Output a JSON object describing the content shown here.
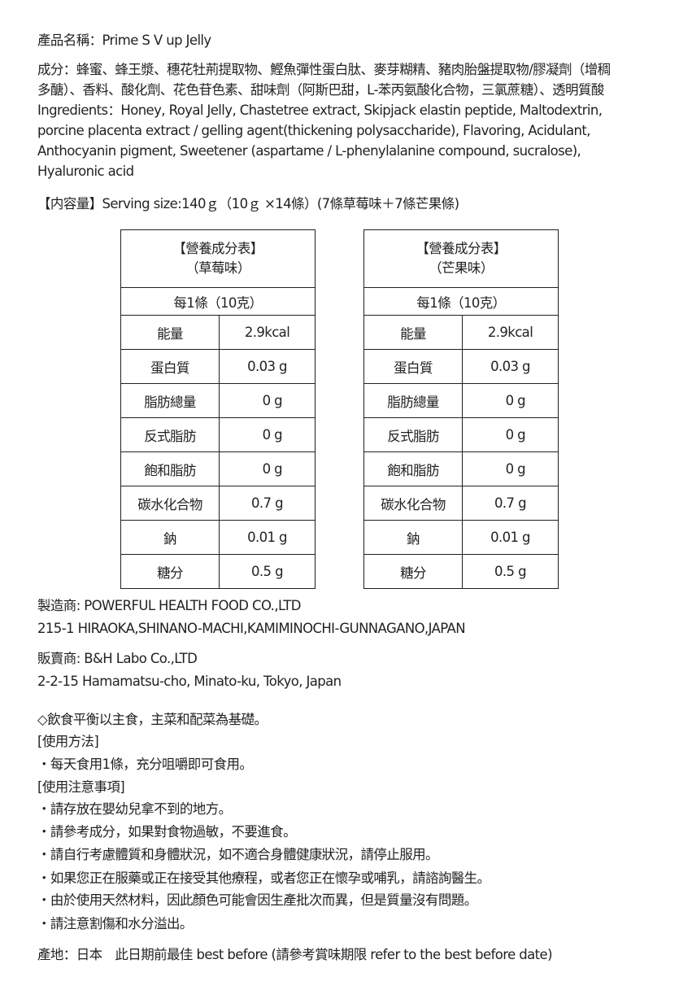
{
  "product_name": "產品名稱：Prime S V up Jelly",
  "ingredients_zh": [
    "成分：蜂蜜、蜂王漿、穗花牡荊提取物、鰹魚彈性蛋白肽、麥芽糊精、豬肉胎盤提取物/膠凝劑（增稠",
    "多醣）、香料、酸化劑、花色苷色素、甜味劑（阿斯巴甜，L-苯丙氨酸化合物，三氯蔗糖）、透明質酸"
  ],
  "ingredients_en": [
    "Ingredients：Honey, Royal Jelly, Chastetree extract, Skipjack elastin peptide, Maltodextrin,",
    "porcine placenta extract / gelling agent(thickening polysaccharide), Flavoring, Acidulant,",
    "Anthocyanin pigment, Sweetener (aspartame / L-phenylalanine compound, sucralose),",
    "Hyaluronic acid"
  ],
  "serving": "【内容量】Serving size:140ｇ（10ｇ ×14條）(7條草莓味＋7條芒果條)",
  "tables": [
    {
      "title": "【營養成分表】",
      "flavor": "（草莓味）",
      "serving": "每1條（10克）",
      "rows": [
        [
          "能量",
          "2.9kcal"
        ],
        [
          "蛋白質",
          "0.03 g"
        ],
        [
          "脂肪總量",
          "0 g"
        ],
        [
          "反式脂肪",
          "0 g"
        ],
        [
          "飽和脂肪",
          "0 g"
        ],
        [
          "碳水化合物",
          "0.7 g"
        ],
        [
          "鈉",
          "0.01 g"
        ],
        [
          "糖分",
          "0.5 g"
        ]
      ]
    },
    {
      "title": "【營養成分表】",
      "flavor": "（芒果味）",
      "serving": "每1條（10克）",
      "rows": [
        [
          "能量",
          "2.9kcal"
        ],
        [
          "蛋白質",
          "0.03 g"
        ],
        [
          "脂肪總量",
          "0 g"
        ],
        [
          "反式脂肪",
          "0 g"
        ],
        [
          "飽和脂肪",
          "0 g"
        ],
        [
          "碳水化合物",
          "0.7 g"
        ],
        [
          "鈉",
          "0.01 g"
        ],
        [
          "糖分",
          "0.5 g"
        ]
      ]
    }
  ],
  "manufacturer": "製造商: POWERFUL HEALTH FOOD CO.,LTD",
  "manufacturer_address": "215-1 HIRAOKA,SHINANO-MACHI,KAMIMINOCHI-GUNNAGANO,JAPAN",
  "seller": "販賣商: B&H Labo Co.,LTD",
  "seller_address": "2-2-15 Hamamatsu-cho, Minato-ku, Tokyo, Japan",
  "notes": [
    "◇飲食平衡以主食，主菜和配菜為基礎。",
    "[使用方法]",
    "・每天食用1條，充分咀嚼即可食用。",
    "[使用注意事項]",
    "・請存放在嬰幼兒拿不到的地方。",
    "・請參考成分，如果對食物過敏，不要進食。",
    "・請自行考慮體質和身體狀況，如不適合身體健康狀況，請停止服用。",
    "・如果您正在服藥或正在接受其他療程，或者您正在懷孕或哺乳，請諮詢醫生。",
    "・由於使用天然材料，因此顏色可能會因生產批次而異，但是質量沒有問題。",
    "・請注意割傷和水分溢出。"
  ],
  "origin": "產地：日本　此日期前最佳 best before (請參考賞味期限 refer to the best before date)"
}
